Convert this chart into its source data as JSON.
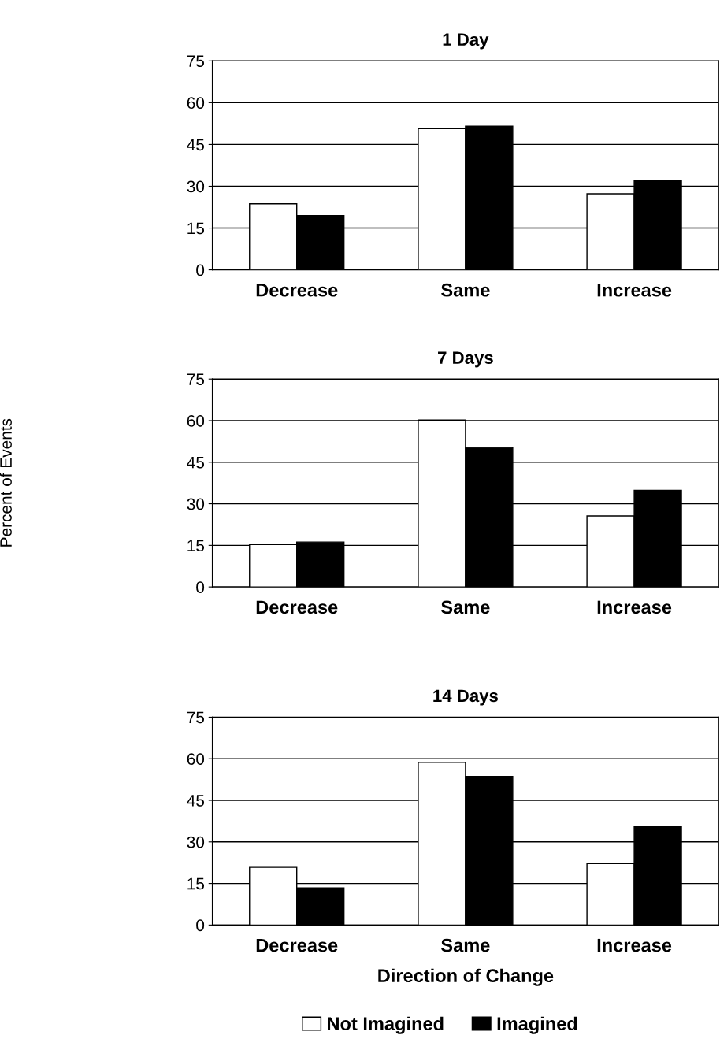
{
  "chart_data": [
    {
      "type": "bar",
      "title": "1 Day",
      "categories": [
        "Decrease",
        "Same",
        "Increase"
      ],
      "series": [
        {
          "color": "#ffffff",
          "values": [
            23.7,
            50.7,
            27.3
          ]
        },
        {
          "color": "#000000",
          "values": [
            19.5,
            51.6,
            31.9
          ]
        }
      ],
      "ylim": [
        0,
        75
      ],
      "yticks": [
        0,
        15,
        30,
        45,
        60,
        75
      ],
      "grid": "y"
    },
    {
      "type": "bar",
      "title": "7 Days",
      "ylabel": "Percent of Events",
      "categories": [
        "Decrease",
        "Same",
        "Increase"
      ],
      "series": [
        {
          "color": "#ffffff",
          "values": [
            15.3,
            60.2,
            25.6
          ]
        },
        {
          "color": "#000000",
          "values": [
            16.2,
            50.3,
            34.9
          ]
        }
      ],
      "ylim": [
        0,
        75
      ],
      "yticks": [
        0,
        15,
        30,
        45,
        60,
        75
      ],
      "grid": "y"
    },
    {
      "type": "bar",
      "title": "14 Days",
      "xlabel": "Direction of Change",
      "categories": [
        "Decrease",
        "Same",
        "Increase"
      ],
      "series": [
        {
          "name": "Not Imagined",
          "color": "#ffffff",
          "values": [
            20.8,
            58.7,
            22.2
          ]
        },
        {
          "name": "Imagined",
          "color": "#000000",
          "values": [
            13.4,
            53.6,
            35.6
          ]
        }
      ],
      "ylim": [
        0,
        75
      ],
      "yticks": [
        0,
        15,
        30,
        45,
        60,
        75
      ],
      "grid": "y",
      "legend": "bottom"
    }
  ]
}
